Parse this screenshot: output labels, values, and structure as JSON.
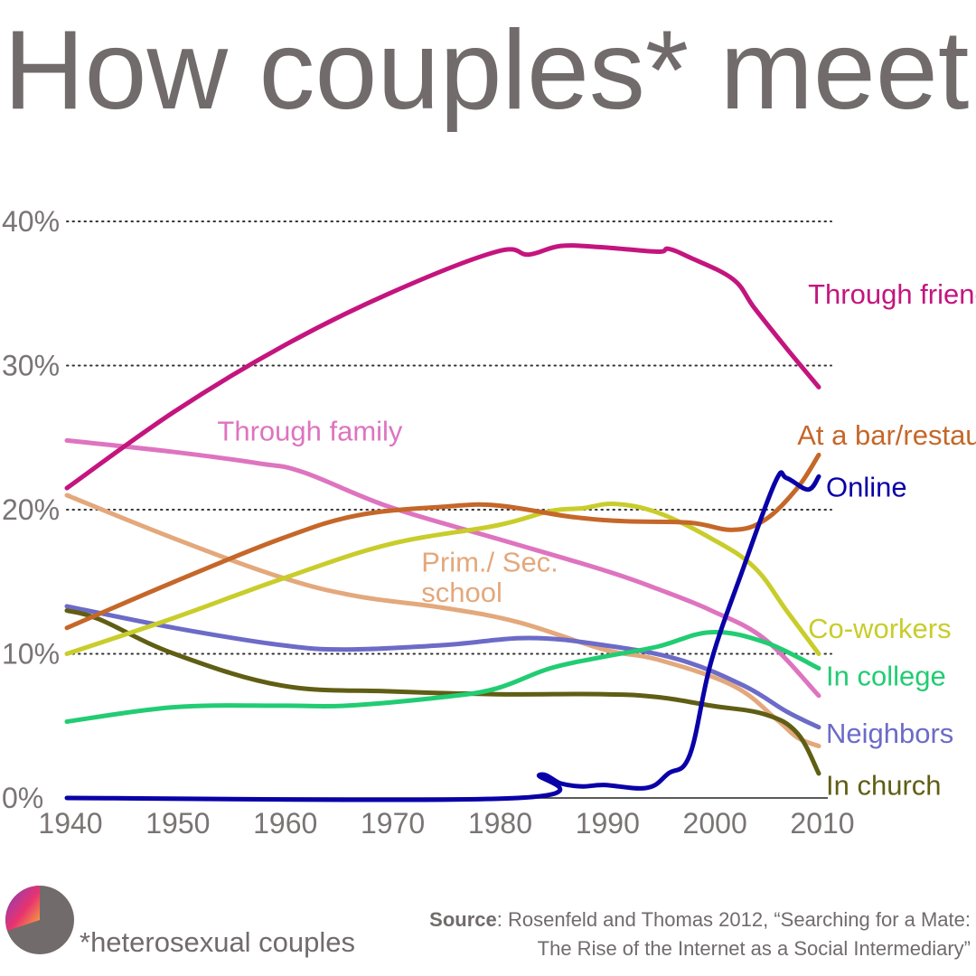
{
  "header": {
    "title": "How couples* meet"
  },
  "footer": {
    "note": "*heterosexual couples",
    "source_label": "Source",
    "source_line1": ": Rosenfeld and Thomas 2012, “Searching for a Mate:",
    "source_line2": "The Rise of the Internet as a Social Intermediary”"
  },
  "chart_data": {
    "type": "line",
    "title": "How couples* meet",
    "xlabel": "",
    "ylabel": "",
    "xlim": [
      1940,
      2010
    ],
    "ylim": [
      0,
      40
    ],
    "x_ticks": [
      "1940",
      "1950",
      "1960",
      "1970",
      "1980",
      "1990",
      "2000",
      "2010"
    ],
    "y_ticks": [
      "0%",
      "10%",
      "20%",
      "30%",
      "40%"
    ],
    "grid": "dotted horizontal at 10% steps",
    "legend": "direct labels at line ends",
    "series": [
      {
        "name": "Through friends",
        "color": "#c4157f",
        "points": [
          [
            1940,
            21.5
          ],
          [
            1950,
            26.8
          ],
          [
            1960,
            31.3
          ],
          [
            1970,
            35.0
          ],
          [
            1980,
            37.9
          ],
          [
            1983,
            37.7
          ],
          [
            1986,
            38.3
          ],
          [
            1990,
            38.2
          ],
          [
            1995,
            37.9
          ],
          [
            1996,
            38.1
          ],
          [
            1998,
            37.5
          ],
          [
            2002,
            36.0
          ],
          [
            2004,
            34.0
          ],
          [
            2007,
            31.2
          ],
          [
            2010,
            28.5
          ]
        ]
      },
      {
        "name": "Through family",
        "color": "#de73bf",
        "points": [
          [
            1940,
            24.8
          ],
          [
            1950,
            24.0
          ],
          [
            1958,
            23.2
          ],
          [
            1962,
            22.6
          ],
          [
            1970,
            20.2
          ],
          [
            1980,
            18.0
          ],
          [
            1990,
            15.8
          ],
          [
            1995,
            14.5
          ],
          [
            2000,
            13.0
          ],
          [
            2005,
            11.0
          ],
          [
            2010,
            7.1
          ]
        ]
      },
      {
        "name": "At a bar/restaurant",
        "color": "#c6672a",
        "points": [
          [
            1940,
            11.8
          ],
          [
            1950,
            15.0
          ],
          [
            1960,
            18.0
          ],
          [
            1967,
            19.6
          ],
          [
            1975,
            20.2
          ],
          [
            1980,
            20.3
          ],
          [
            1987,
            19.5
          ],
          [
            1992,
            19.2
          ],
          [
            1998,
            19.1
          ],
          [
            2002,
            18.6
          ],
          [
            2005,
            19.3
          ],
          [
            2008,
            21.5
          ],
          [
            2010,
            23.8
          ]
        ]
      },
      {
        "name": "Online",
        "color": "#0a00a8",
        "points": [
          [
            1940,
            0
          ],
          [
            1982,
            0
          ],
          [
            1984,
            1.6
          ],
          [
            1986,
            1.0
          ],
          [
            1988,
            0.8
          ],
          [
            1990,
            0.9
          ],
          [
            1994,
            0.7
          ],
          [
            1996,
            1.7
          ],
          [
            1998,
            3.0
          ],
          [
            2000,
            9.5
          ],
          [
            2003,
            16.0
          ],
          [
            2006,
            22.0
          ],
          [
            2007,
            22.2
          ],
          [
            2009,
            21.4
          ],
          [
            2010,
            22.3
          ]
        ]
      },
      {
        "name": "Prim./ Sec. school",
        "color": "#e4a87d",
        "points": [
          [
            1940,
            21.0
          ],
          [
            1950,
            18.0
          ],
          [
            1960,
            15.3
          ],
          [
            1967,
            14.0
          ],
          [
            1975,
            13.2
          ],
          [
            1982,
            12.2
          ],
          [
            1990,
            10.3
          ],
          [
            1995,
            9.6
          ],
          [
            2002,
            7.8
          ],
          [
            2006,
            5.5
          ],
          [
            2008,
            4.2
          ],
          [
            2010,
            3.6
          ]
        ]
      },
      {
        "name": "Co-workers",
        "color": "#c9cd2b",
        "points": [
          [
            1940,
            10.0
          ],
          [
            1950,
            12.5
          ],
          [
            1960,
            15.2
          ],
          [
            1970,
            17.6
          ],
          [
            1980,
            18.9
          ],
          [
            1985,
            19.9
          ],
          [
            1988,
            20.1
          ],
          [
            1991,
            20.4
          ],
          [
            1995,
            19.8
          ],
          [
            2000,
            18.0
          ],
          [
            2004,
            16.0
          ],
          [
            2007,
            13.0
          ],
          [
            2010,
            10.0
          ]
        ]
      },
      {
        "name": "In college",
        "color": "#22cc73",
        "points": [
          [
            1940,
            5.3
          ],
          [
            1950,
            6.3
          ],
          [
            1960,
            6.4
          ],
          [
            1966,
            6.4
          ],
          [
            1975,
            7.0
          ],
          [
            1980,
            7.6
          ],
          [
            1985,
            9.0
          ],
          [
            1990,
            9.8
          ],
          [
            1995,
            10.5
          ],
          [
            2000,
            11.5
          ],
          [
            2005,
            10.8
          ],
          [
            2010,
            9.0
          ]
        ]
      },
      {
        "name": "Neighbors",
        "color": "#6c6bc8",
        "points": [
          [
            1940,
            13.3
          ],
          [
            1950,
            11.8
          ],
          [
            1960,
            10.6
          ],
          [
            1966,
            10.3
          ],
          [
            1975,
            10.6
          ],
          [
            1983,
            11.1
          ],
          [
            1990,
            10.6
          ],
          [
            1997,
            9.6
          ],
          [
            2003,
            7.8
          ],
          [
            2007,
            6.0
          ],
          [
            2010,
            4.9
          ]
        ]
      },
      {
        "name": "In church",
        "color": "#5f5e14",
        "points": [
          [
            1940,
            13.0
          ],
          [
            1943,
            12.4
          ],
          [
            1950,
            10.0
          ],
          [
            1960,
            7.8
          ],
          [
            1970,
            7.4
          ],
          [
            1980,
            7.2
          ],
          [
            1990,
            7.2
          ],
          [
            1995,
            7.0
          ],
          [
            2000,
            6.4
          ],
          [
            2005,
            5.8
          ],
          [
            2008,
            4.5
          ],
          [
            2010,
            1.7
          ]
        ]
      }
    ],
    "labels": [
      {
        "text": "Through friends",
        "color": "#c4157f",
        "year": 2009,
        "y": 35.0,
        "anchor": "start"
      },
      {
        "text": "Through family",
        "color": "#de73bf",
        "year": 1954,
        "y": 25.5,
        "anchor": "start"
      },
      {
        "text": "At a bar/restaurant",
        "color": "#c6672a",
        "year": 2008,
        "y": 25.2,
        "anchor": "start"
      },
      {
        "text": "Online",
        "color": "#0a00a8",
        "year": 2010,
        "y": 21.6,
        "anchor": "gap"
      },
      {
        "text": "Prim./ Sec.",
        "color": "#e4a87d",
        "year": 1973,
        "y": 16.4,
        "anchor": "start"
      },
      {
        "text": "school",
        "color": "#e4a87d",
        "year": 1973,
        "y": 14.3,
        "anchor": "start"
      },
      {
        "text": "Co-workers",
        "color": "#c9cd2b",
        "year": 2009,
        "y": 11.8,
        "anchor": "start"
      },
      {
        "text": "In college",
        "color": "#22cc73",
        "year": 2010,
        "y": 8.5,
        "anchor": "gap"
      },
      {
        "text": "Neighbors",
        "color": "#6c6bc8",
        "year": 2010,
        "y": 4.5,
        "anchor": "gap"
      },
      {
        "text": "In church",
        "color": "#5f5e14",
        "year": 2010,
        "y": 0.9,
        "anchor": "gap"
      }
    ]
  }
}
